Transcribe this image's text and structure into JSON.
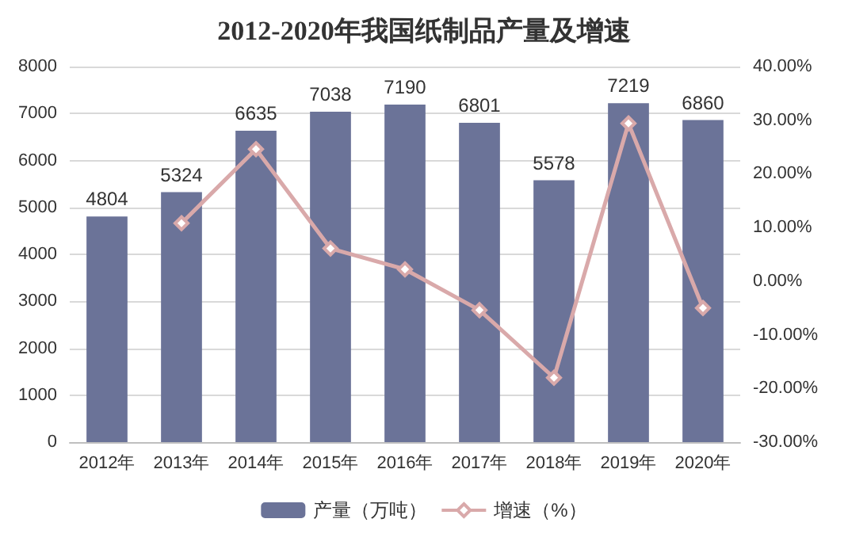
{
  "chart_data": {
    "type": "bar",
    "title": "2012-2020年我国纸制品产量及增速",
    "categories": [
      "2012年",
      "2013年",
      "2014年",
      "2015年",
      "2016年",
      "2017年",
      "2018年",
      "2019年",
      "2020年"
    ],
    "series": [
      {
        "name": "产量（万吨）",
        "color": "#6b7398",
        "values": [
          4804,
          5324,
          6635,
          7038,
          7190,
          6801,
          5578,
          7219,
          6860
        ],
        "value_labels": [
          "4804",
          "5324",
          "6635",
          "7038",
          "7190",
          "6801",
          "5578",
          "7219",
          "6860"
        ]
      },
      {
        "name": "增速（%）",
        "type": "line",
        "axis": "y2",
        "color": "#d9a9aa",
        "marker": "diamond",
        "values": [
          null,
          10.8,
          24.6,
          6.1,
          2.2,
          -5.4,
          -18.0,
          29.4,
          -5.0
        ]
      }
    ],
    "ylim": [
      0,
      8000
    ],
    "yticks": [
      0,
      1000,
      2000,
      3000,
      4000,
      5000,
      6000,
      7000,
      8000
    ],
    "y2lim": [
      -30,
      40
    ],
    "y2ticks": [
      {
        "value": -30,
        "label": "-30.00%"
      },
      {
        "value": -20,
        "label": "-20.00%"
      },
      {
        "value": -10,
        "label": "-10.00%"
      },
      {
        "value": 0,
        "label": "0.00%"
      },
      {
        "value": 10,
        "label": "10.00%"
      },
      {
        "value": 20,
        "label": "20.00%"
      },
      {
        "value": 30,
        "label": "30.00%"
      },
      {
        "value": 40,
        "label": "40.00%"
      }
    ],
    "grid": "y",
    "legend": "bottom"
  }
}
